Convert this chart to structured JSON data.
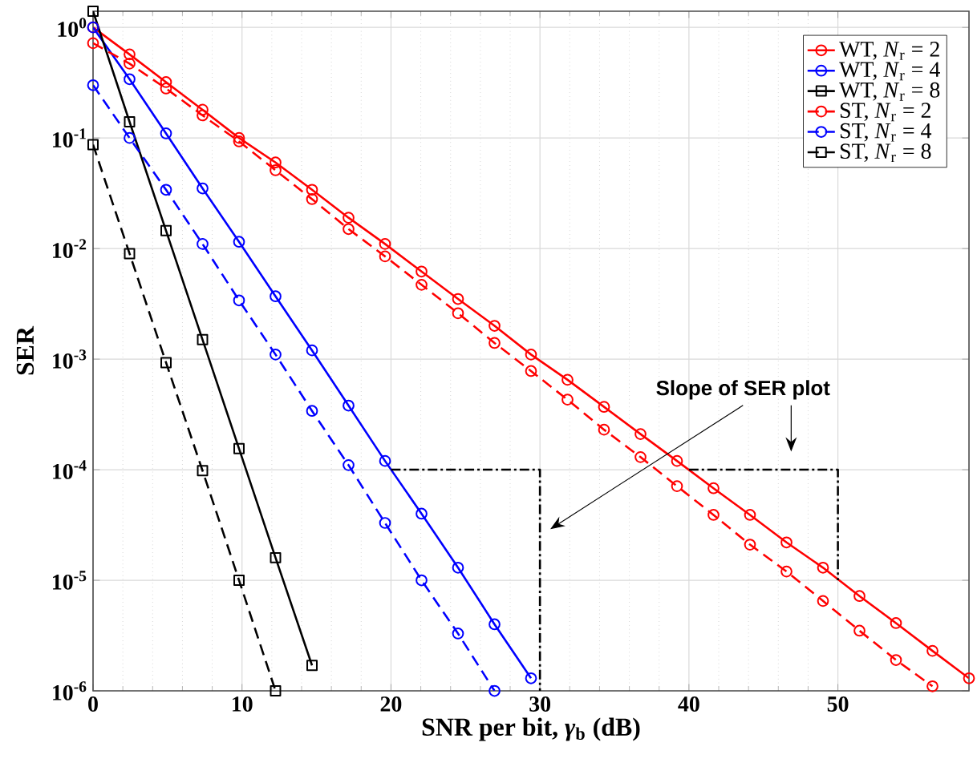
{
  "chart_data": {
    "type": "line",
    "xlabel": "SNR per bit, *γ*$_{b}$ (dB)",
    "ylabel": "SER",
    "annotations": [
      "Slope of SER plot"
    ],
    "xlim": [
      0,
      58.8
    ],
    "ylim": [
      1e-06,
      1.4
    ],
    "log": "y",
    "grid": true,
    "legend": "top right",
    "xticks": [
      0,
      10,
      20,
      30,
      40,
      50
    ],
    "yticks": [
      {
        "value": 1,
        "label": "10$^{0}$"
      },
      {
        "value": 0.1,
        "label": "10$^{-1}$"
      },
      {
        "value": 0.01,
        "label": "10$^{-2}$"
      },
      {
        "value": 0.001,
        "label": "10$^{-3}$"
      },
      {
        "value": 0.0001,
        "label": "10$^{-4}$"
      },
      {
        "value": 1e-05,
        "label": "10$^{-5}$"
      },
      {
        "value": 1e-06,
        "label": "10$^{-6}$"
      }
    ],
    "series": [
      {
        "name": "WT, *N*$_{r}$ = 2",
        "color": "#ff0000",
        "line_style": "solid",
        "marker": "circle",
        "x": [
          0,
          2.45,
          4.9,
          7.35,
          9.8,
          12.25,
          14.7,
          17.15,
          19.6,
          22.05,
          24.5,
          26.95,
          29.4,
          31.85,
          34.3,
          36.75,
          39.2,
          41.65,
          44.1,
          46.55,
          49,
          51.45,
          53.9,
          56.35,
          58.8
        ],
        "values": [
          1.0,
          0.57,
          0.32,
          0.18,
          0.1,
          0.06,
          0.034,
          0.019,
          0.011,
          0.0062,
          0.0035,
          0.002,
          0.0011,
          0.00065,
          0.00037,
          0.00021,
          0.00012,
          6.8e-05,
          3.9e-05,
          2.2e-05,
          1.3e-05,
          7.2e-06,
          4.1e-06,
          2.3e-06,
          1.3e-06
        ]
      },
      {
        "name": "WT, *N*$_{r}$ = 4",
        "color": "#0000ff",
        "line_style": "solid",
        "marker": "circle",
        "x": [
          0,
          2.45,
          4.9,
          7.35,
          9.8,
          12.25,
          14.7,
          17.15,
          19.6,
          22.05,
          24.5,
          26.95,
          29.4
        ],
        "values": [
          1.0,
          0.34,
          0.11,
          0.035,
          0.0115,
          0.0037,
          0.0012,
          0.00038,
          0.00012,
          4e-05,
          1.3e-05,
          4e-06,
          1.3e-06
        ]
      },
      {
        "name": "WT, *N*$_{r}$ = 8",
        "color": "#000000",
        "line_style": "solid",
        "marker": "square",
        "x": [
          0,
          2.45,
          4.9,
          7.35,
          9.8,
          12.25,
          14.7
        ],
        "values": [
          1.4,
          0.14,
          0.0145,
          0.0015,
          0.000155,
          1.6e-05,
          1.7e-06
        ]
      },
      {
        "name": "ST,  *N*$_{r}$ = 2",
        "color": "#ff0000",
        "line_style": "dashed",
        "marker": "circle",
        "x": [
          0,
          2.45,
          4.9,
          7.35,
          9.8,
          12.25,
          14.7,
          17.15,
          19.6,
          22.05,
          24.5,
          26.95,
          29.4,
          31.85,
          34.3,
          36.75,
          39.2,
          41.65,
          44.1,
          46.55,
          49,
          51.45,
          53.9,
          56.35
        ],
        "values": [
          0.72,
          0.47,
          0.28,
          0.16,
          0.093,
          0.051,
          0.028,
          0.015,
          0.0085,
          0.0047,
          0.0026,
          0.0014,
          0.00078,
          0.00043,
          0.00023,
          0.00013,
          7.1e-05,
          3.9e-05,
          2.1e-05,
          1.2e-05,
          6.5e-06,
          3.5e-06,
          1.9e-06,
          1.1e-06
        ]
      },
      {
        "name": "ST,  *N*$_{r}$ = 4",
        "color": "#0000ff",
        "line_style": "dashed",
        "marker": "circle",
        "x": [
          0,
          2.45,
          4.9,
          7.35,
          9.8,
          12.25,
          14.7,
          17.15,
          19.6,
          22.05,
          24.5,
          26.95
        ],
        "values": [
          0.3,
          0.1,
          0.034,
          0.011,
          0.0034,
          0.0011,
          0.00034,
          0.00011,
          3.3e-05,
          1e-05,
          3.3e-06,
          1e-06
        ]
      },
      {
        "name": "ST,  *N*$_{r}$ = 8",
        "color": "#000000",
        "line_style": "dashed",
        "marker": "square",
        "x": [
          0,
          2.45,
          4.9,
          7.35,
          9.8,
          12.25
        ],
        "values": [
          0.087,
          0.009,
          0.00093,
          9.8e-05,
          1e-05,
          1e-06
        ]
      },
      {
        "type": "line",
        "color": "#000000",
        "line_style": "dashdot",
        "marker": "none",
        "x": [
          20,
          30,
          30
        ],
        "values": [
          0.0001,
          0.0001,
          1e-06
        ]
      },
      {
        "type": "line",
        "color": "#000000",
        "line_style": "dashdot",
        "marker": "none",
        "x": [
          40,
          50,
          50
        ],
        "values": [
          0.0001,
          0.0001,
          1e-05
        ]
      }
    ]
  }
}
